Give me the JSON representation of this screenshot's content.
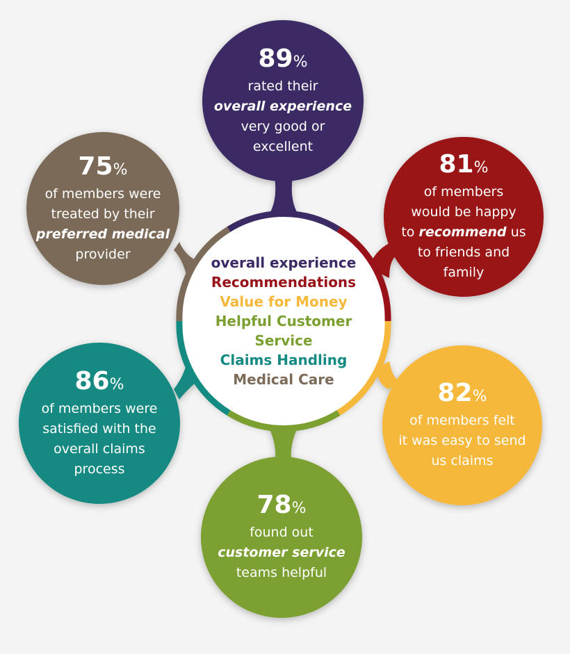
{
  "colors": {
    "purple": "#3b2a63",
    "red": "#9a1219",
    "yellow": "#f6b83a",
    "green": "#7ba030",
    "teal": "#138a82",
    "brown": "#7b6b58"
  },
  "center": {
    "items": [
      "overall experience",
      "Recommendations",
      "Value for Money",
      "Helpful Customer Service",
      "Claims Handling",
      "Medical Care"
    ]
  },
  "bubbles": [
    {
      "pct": "89",
      "unit": "%",
      "lines": [
        "rated their",
        "overall experience",
        "very good or",
        "excellent"
      ]
    },
    {
      "pct": "81",
      "unit": "%",
      "lines": [
        "of members",
        "would be happy",
        "to ",
        "recommend",
        " us",
        "to friends and",
        "family"
      ]
    },
    {
      "pct": "82",
      "unit": "%",
      "lines": [
        "of members felt",
        "it was easy to send",
        "us claims"
      ]
    },
    {
      "pct": "78",
      "unit": "%",
      "lines": [
        "found out",
        "customer service",
        "teams helpful"
      ]
    },
    {
      "pct": "86",
      "unit": "%",
      "lines": [
        "of members were",
        "satisfied with the",
        "overall claims",
        "process"
      ]
    },
    {
      "pct": "75",
      "unit": "%",
      "lines": [
        "of members were",
        "treated by their",
        "preferred medical",
        "provider"
      ]
    }
  ]
}
